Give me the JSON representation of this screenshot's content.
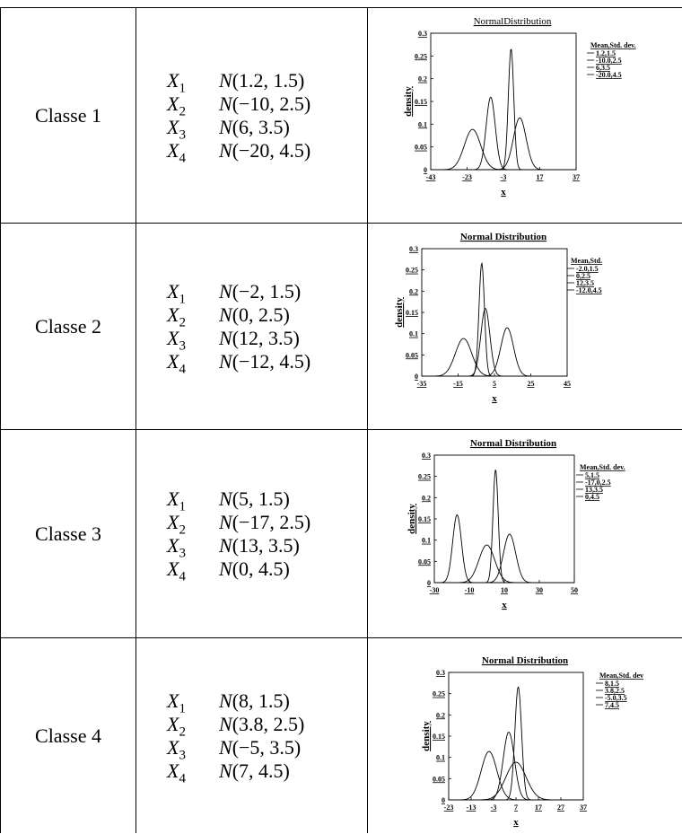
{
  "rows": [
    {
      "class_label": "Classe 1",
      "vars": [
        {
          "name": "X",
          "sub": "1",
          "params": "(1.2, 1.5)"
        },
        {
          "name": "X",
          "sub": "2",
          "params": "(−10, 2.5)"
        },
        {
          "name": "X",
          "sub": "3",
          "params": "(6, 3.5)"
        },
        {
          "name": "X",
          "sub": "4",
          "params": "(−20, 4.5)"
        }
      ]
    },
    {
      "class_label": "Classe 2",
      "vars": [
        {
          "name": "X",
          "sub": "1",
          "params": "(−2, 1.5)"
        },
        {
          "name": "X",
          "sub": "2",
          "params": "(0, 2.5)"
        },
        {
          "name": "X",
          "sub": "3",
          "params": "(12, 3.5)"
        },
        {
          "name": "X",
          "sub": "4",
          "params": "(−12, 4.5)"
        }
      ]
    },
    {
      "class_label": "Classe 3",
      "vars": [
        {
          "name": "X",
          "sub": "1",
          "params": "(5, 1.5)"
        },
        {
          "name": "X",
          "sub": "2",
          "params": "(−17, 2.5)"
        },
        {
          "name": "X",
          "sub": "3",
          "params": "(13, 3.5)"
        },
        {
          "name": "X",
          "sub": "4",
          "params": "(0, 4.5)"
        }
      ]
    },
    {
      "class_label": "Classe 4",
      "vars": [
        {
          "name": "X",
          "sub": "1",
          "params": "(8, 1.5)"
        },
        {
          "name": "X",
          "sub": "2",
          "params": "(3.8, 2.5)"
        },
        {
          "name": "X",
          "sub": "3",
          "params": "(−5, 3.5)"
        },
        {
          "name": "X",
          "sub": "4",
          "params": "(7, 4.5)"
        }
      ]
    }
  ],
  "dist_symbol": "N",
  "chart_data": [
    {
      "type": "line",
      "title": "NormalDistribution",
      "title_bold": false,
      "xlabel": "x",
      "ylabel": "density",
      "xlim": [
        -43,
        37
      ],
      "ylim": [
        0,
        0.3
      ],
      "xticks": [
        "-43",
        "-23",
        "-3",
        "17",
        "37"
      ],
      "yticks": [
        "0",
        "0.05",
        "0.1",
        "0.15",
        "0.2",
        "0.25",
        "0.3"
      ],
      "legend_title": "Mean,Std. dev.",
      "series": [
        {
          "name": "1.2,1.5",
          "mean": 1.2,
          "sd": 1.5
        },
        {
          "name": "-10.0,2.5",
          "mean": -10,
          "sd": 2.5
        },
        {
          "name": "6,3.5",
          "mean": 6,
          "sd": 3.5
        },
        {
          "name": "-20.0,4.5",
          "mean": -20,
          "sd": 4.5
        }
      ]
    },
    {
      "type": "line",
      "title": "Normal Distribution",
      "title_bold": true,
      "xlabel": "x",
      "ylabel": "density",
      "xlim": [
        -35,
        45
      ],
      "ylim": [
        0,
        0.3
      ],
      "xticks": [
        "-35",
        "-15",
        "5",
        "25",
        "45"
      ],
      "yticks": [
        "0",
        "0.05",
        "0.1",
        "0.15",
        "0.2",
        "0.25",
        "0.3"
      ],
      "legend_title": "Mean,Std.",
      "series": [
        {
          "name": "-2.0,1.5",
          "mean": -2,
          "sd": 1.5
        },
        {
          "name": "0,2.5",
          "mean": 0,
          "sd": 2.5
        },
        {
          "name": "12,3.5",
          "mean": 12,
          "sd": 3.5
        },
        {
          "name": "-12.0,4.5",
          "mean": -12,
          "sd": 4.5
        }
      ]
    },
    {
      "type": "line",
      "title": "Normal Distribution",
      "title_bold": true,
      "xlabel": "x",
      "ylabel": "density",
      "xlim": [
        -30,
        50
      ],
      "ylim": [
        0,
        0.3
      ],
      "xticks": [
        "-30",
        "-10",
        "10",
        "30",
        "50"
      ],
      "yticks": [
        "0",
        "0.05",
        "0.1",
        "0.15",
        "0.2",
        "0.25",
        "0.3"
      ],
      "legend_title": "Mean,Std. dev.",
      "series": [
        {
          "name": "5,1.5",
          "mean": 5,
          "sd": 1.5
        },
        {
          "name": "-17,0,2.5",
          "mean": -17,
          "sd": 2.5
        },
        {
          "name": "13,3.5",
          "mean": 13,
          "sd": 3.5
        },
        {
          "name": "0,4.5",
          "mean": 0,
          "sd": 4.5
        }
      ]
    },
    {
      "type": "line",
      "title": "Normal Distribution",
      "title_bold": true,
      "xlabel": "x",
      "ylabel": "density",
      "xlim": [
        -23,
        37
      ],
      "ylim": [
        0,
        0.3
      ],
      "xticks": [
        "-23",
        "-13",
        "-3",
        "7",
        "17",
        "27",
        "37"
      ],
      "yticks": [
        "0",
        "0.05",
        "0.1",
        "0.15",
        "0.2",
        "0.25",
        "0.3"
      ],
      "legend_title": "Mean,Std. dev",
      "series": [
        {
          "name": "8,1.5",
          "mean": 8,
          "sd": 1.5
        },
        {
          "name": "3.8,2.5",
          "mean": 3.8,
          "sd": 2.5
        },
        {
          "name": "-5.0,3.5",
          "mean": -5,
          "sd": 3.5
        },
        {
          "name": "7,4.5",
          "mean": 7,
          "sd": 4.5
        }
      ]
    }
  ]
}
